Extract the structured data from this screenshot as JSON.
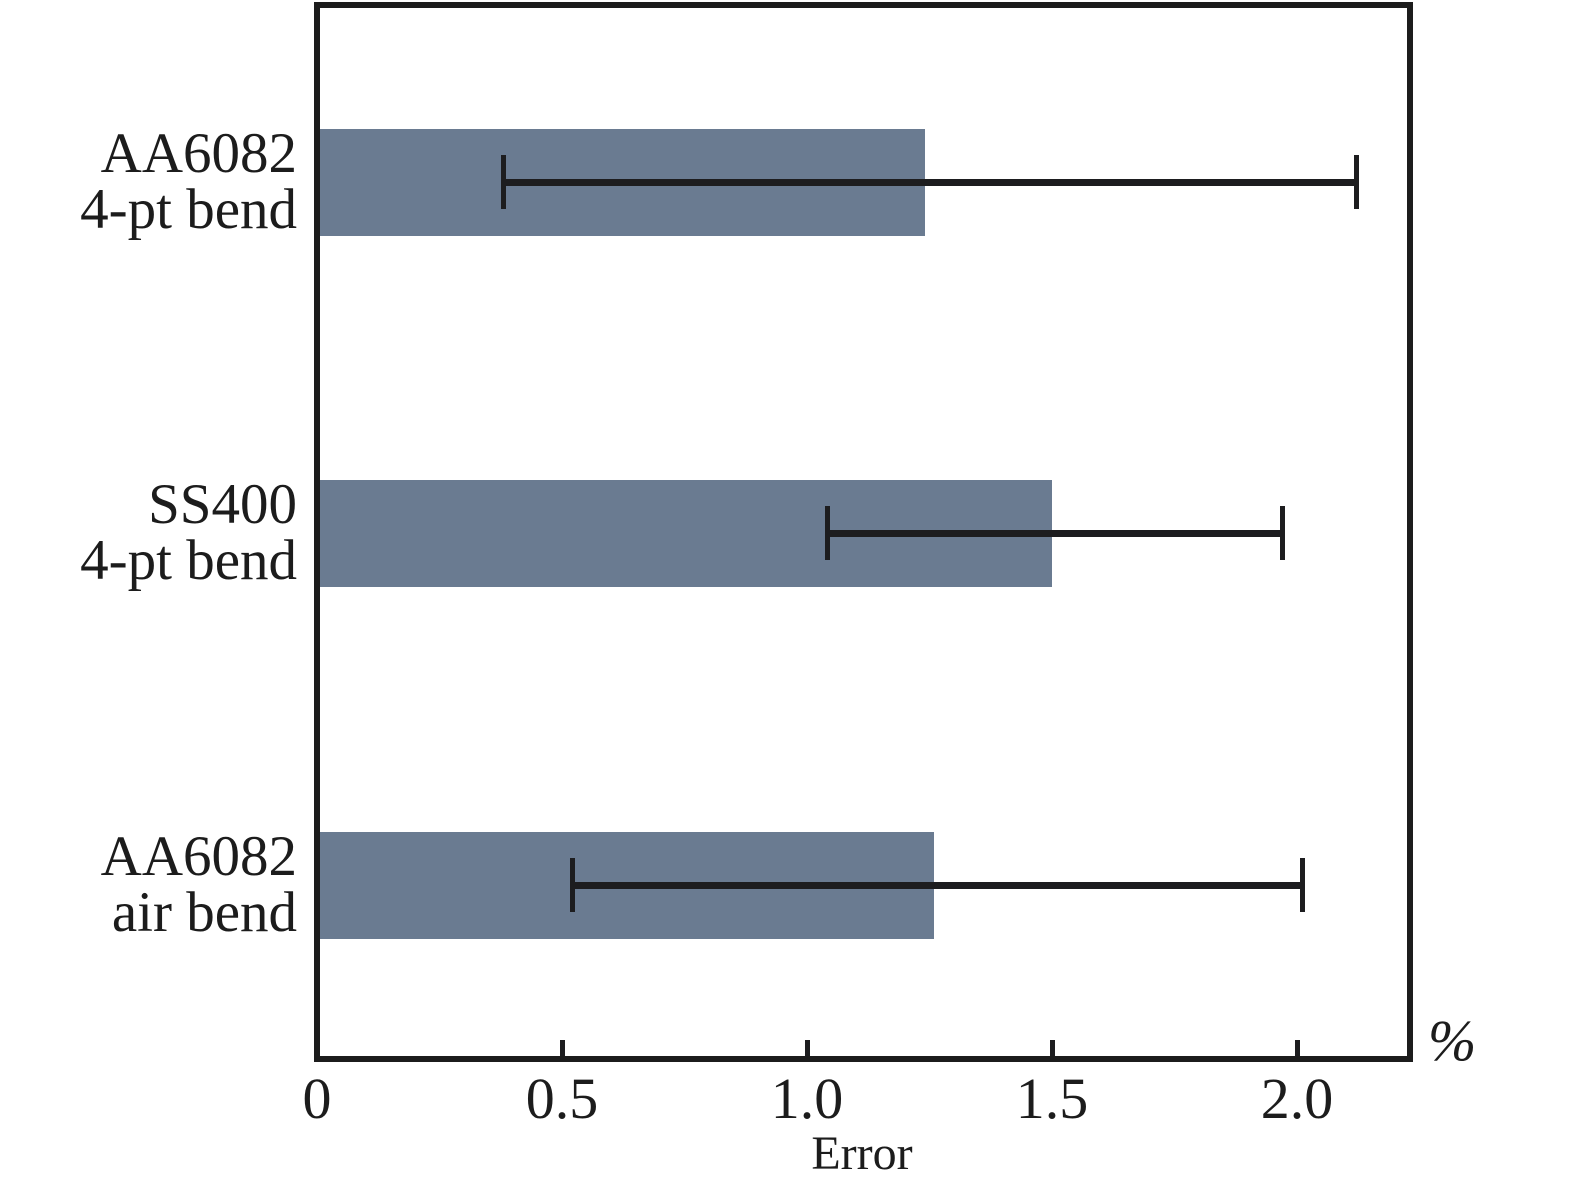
{
  "figure": {
    "background_color": "#ffffff",
    "bar_color": "#6a7b91",
    "line_color": "#1c1c1c"
  },
  "chart_data": {
    "type": "bar",
    "orientation": "horizontal",
    "title": "",
    "xlabel": "Error",
    "x_unit": "%",
    "categories": [
      "AA6082\n4-pt bend",
      "SS400\n4-pt bend",
      "AA6082\nair bend"
    ],
    "values": [
      1.24,
      1.5,
      1.26
    ],
    "error_ranges": [
      [
        0.38,
        2.12
      ],
      [
        1.04,
        1.97
      ],
      [
        0.52,
        2.01
      ]
    ],
    "xlim": [
      0,
      2.22
    ],
    "xticks": [
      0,
      0.5,
      1.0,
      1.5,
      2.0
    ],
    "xtick_labels": [
      "0",
      "0.5",
      "1.0",
      "1.5",
      "2.0"
    ],
    "grid": false,
    "legend": null,
    "bar_color": "#6a7b91",
    "error_bar_color": "#1d1d1f"
  }
}
